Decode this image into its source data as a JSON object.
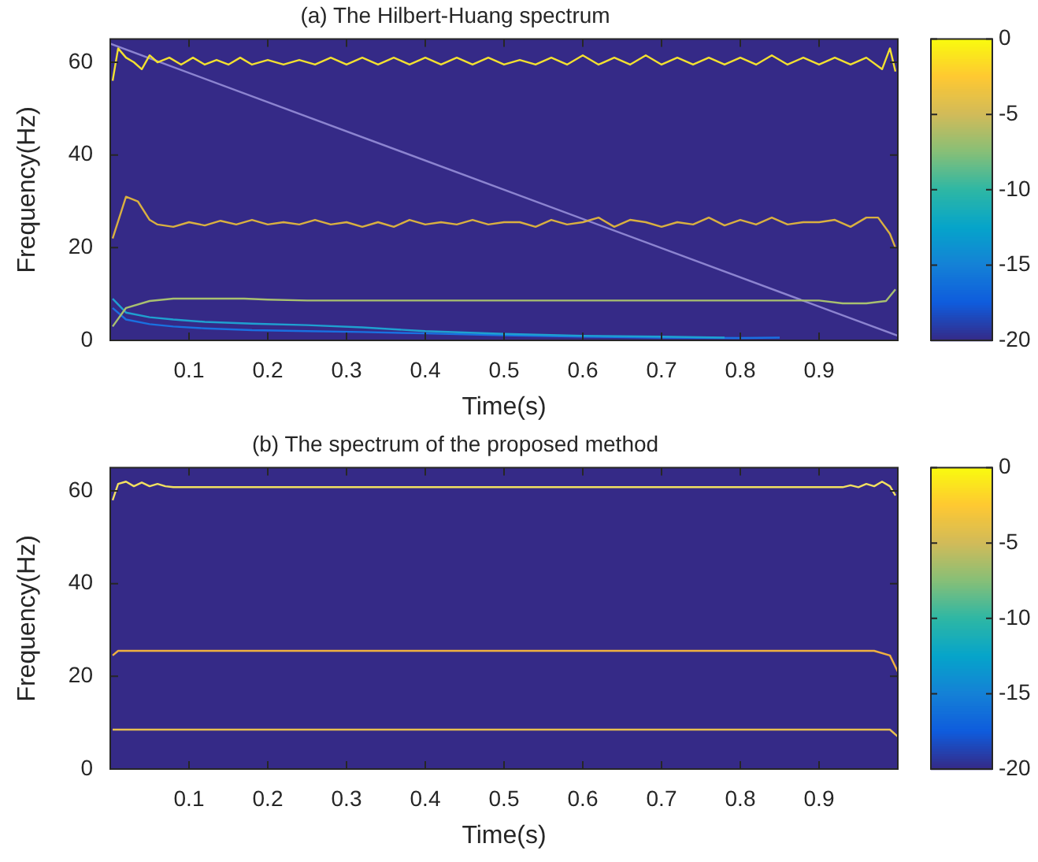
{
  "chart_data": [
    {
      "type": "line",
      "title": "(a) The Hilbert-Huang spectrum",
      "xlabel": "Time(s)",
      "ylabel": "Frequency(Hz)",
      "xlim": [
        0,
        1
      ],
      "xticks": [
        0.1,
        0.2,
        0.3,
        0.4,
        0.5,
        0.6,
        0.7,
        0.8,
        0.9
      ],
      "ylim": [
        0,
        65
      ],
      "yticks": [
        0,
        20,
        40,
        60
      ],
      "clim": [
        -20,
        0
      ],
      "cticks": [
        0,
        -5,
        -10,
        -15,
        -20
      ],
      "marker": "none",
      "series": [
        {
          "color": "#f2e030",
          "x": [
            0.003,
            0.01,
            0.02,
            0.03,
            0.04,
            0.05,
            0.06,
            0.075,
            0.09,
            0.105,
            0.12,
            0.135,
            0.15,
            0.165,
            0.18,
            0.2,
            0.22,
            0.24,
            0.26,
            0.28,
            0.3,
            0.32,
            0.34,
            0.36,
            0.38,
            0.4,
            0.42,
            0.44,
            0.46,
            0.48,
            0.5,
            0.52,
            0.54,
            0.56,
            0.58,
            0.6,
            0.62,
            0.64,
            0.66,
            0.68,
            0.7,
            0.72,
            0.74,
            0.76,
            0.78,
            0.8,
            0.82,
            0.84,
            0.86,
            0.88,
            0.9,
            0.92,
            0.94,
            0.96,
            0.98,
            0.99,
            0.997
          ],
          "values": [
            56,
            63,
            61,
            60,
            58.5,
            61.5,
            60,
            61,
            59.5,
            61,
            59.5,
            60.5,
            59.5,
            61,
            59.5,
            60.5,
            59.5,
            60.5,
            59.5,
            61,
            59.5,
            61,
            59.5,
            61,
            59.5,
            61,
            59.5,
            61,
            59.5,
            61,
            59.5,
            60.5,
            59.5,
            61,
            59.5,
            61.5,
            59.5,
            61,
            59.5,
            61.5,
            59.5,
            61,
            59.5,
            61,
            59.5,
            61,
            59.5,
            61.5,
            59.5,
            61,
            59.5,
            61,
            59.5,
            61,
            58.5,
            63,
            58
          ]
        },
        {
          "color": "#d9b040",
          "x": [
            0.003,
            0.02,
            0.035,
            0.05,
            0.06,
            0.08,
            0.1,
            0.12,
            0.14,
            0.16,
            0.18,
            0.2,
            0.22,
            0.24,
            0.26,
            0.28,
            0.3,
            0.32,
            0.34,
            0.36,
            0.38,
            0.4,
            0.42,
            0.44,
            0.46,
            0.48,
            0.5,
            0.52,
            0.54,
            0.56,
            0.58,
            0.6,
            0.62,
            0.64,
            0.66,
            0.68,
            0.7,
            0.72,
            0.74,
            0.76,
            0.78,
            0.8,
            0.82,
            0.84,
            0.86,
            0.88,
            0.9,
            0.92,
            0.94,
            0.96,
            0.975,
            0.99,
            0.997
          ],
          "values": [
            22,
            31,
            30,
            26,
            25,
            24.5,
            25.5,
            24.8,
            25.8,
            25,
            26,
            25,
            25.5,
            25,
            26,
            25,
            25.5,
            24.5,
            25.5,
            24.5,
            26,
            25,
            25.5,
            25,
            26,
            25,
            25.5,
            25.5,
            24.5,
            26,
            25,
            25.5,
            26.5,
            24.5,
            26,
            25.5,
            24.5,
            25.5,
            25,
            26.5,
            24.8,
            26,
            25,
            26.5,
            25,
            25.5,
            25.5,
            26,
            24.5,
            26.5,
            26.5,
            23,
            20
          ]
        },
        {
          "color": "#a8c070",
          "x": [
            0.003,
            0.02,
            0.05,
            0.08,
            0.12,
            0.17,
            0.2,
            0.25,
            0.3,
            0.4,
            0.6,
            0.8,
            0.9,
            0.93,
            0.96,
            0.985,
            0.997
          ],
          "values": [
            3,
            7,
            8.5,
            9,
            9,
            9,
            8.8,
            8.6,
            8.6,
            8.6,
            8.6,
            8.6,
            8.6,
            8,
            8,
            8.5,
            11
          ]
        },
        {
          "color": "#1fa0d0",
          "x": [
            0.003,
            0.02,
            0.05,
            0.08,
            0.12,
            0.18,
            0.25,
            0.32,
            0.4,
            0.5,
            0.6,
            0.7,
            0.78
          ],
          "values": [
            9,
            6,
            5,
            4.5,
            4,
            3.6,
            3.3,
            2.8,
            2,
            1.4,
            1,
            0.8,
            0.6
          ]
        },
        {
          "color": "#1a70e0",
          "x": [
            0.003,
            0.02,
            0.05,
            0.08,
            0.12,
            0.18,
            0.25,
            0.32,
            0.4,
            0.5,
            0.6,
            0.7,
            0.8,
            0.85
          ],
          "values": [
            7,
            4.5,
            3.5,
            3,
            2.6,
            2.2,
            2,
            1.8,
            1.5,
            1.1,
            0.8,
            0.6,
            0.5,
            0.6
          ]
        },
        {
          "color": "#8c84d0",
          "x": [
            0,
            1
          ],
          "values": [
            64,
            1
          ]
        }
      ]
    },
    {
      "type": "line",
      "title": "(b) The spectrum of the proposed method",
      "xlabel": "Time(s)",
      "ylabel": "Frequency(Hz)",
      "xlim": [
        0,
        1
      ],
      "xticks": [
        0.1,
        0.2,
        0.3,
        0.4,
        0.5,
        0.6,
        0.7,
        0.8,
        0.9
      ],
      "ylim": [
        0,
        65
      ],
      "yticks": [
        0,
        20,
        40,
        60
      ],
      "clim": [
        -20,
        0
      ],
      "cticks": [
        0,
        -5,
        -10,
        -15,
        -20
      ],
      "marker": "none",
      "series": [
        {
          "color": "#f2e060",
          "x": [
            0.003,
            0.01,
            0.02,
            0.03,
            0.04,
            0.05,
            0.06,
            0.07,
            0.08,
            0.5,
            0.93,
            0.94,
            0.95,
            0.96,
            0.97,
            0.98,
            0.99,
            0.997
          ],
          "values": [
            58,
            61.5,
            62,
            61,
            61.8,
            61,
            61.5,
            61,
            60.8,
            60.8,
            60.8,
            61.2,
            60.8,
            61.5,
            61,
            62,
            61,
            59
          ]
        },
        {
          "color": "#f0b040",
          "x": [
            0.003,
            0.01,
            0.5,
            0.97,
            0.99,
            1
          ],
          "values": [
            24.5,
            25.5,
            25.5,
            25.5,
            24.5,
            21
          ]
        },
        {
          "color": "#e8c050",
          "x": [
            0.003,
            0.5,
            0.99,
            1
          ],
          "values": [
            8.5,
            8.5,
            8.5,
            7
          ]
        }
      ]
    }
  ]
}
